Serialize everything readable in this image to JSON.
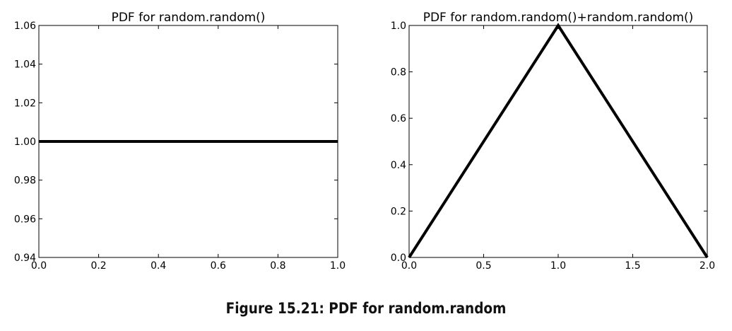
{
  "caption": "Figure 15.21: PDF for random.random",
  "chart_data": [
    {
      "type": "line",
      "title": "PDF for random.random()",
      "xlabel": "",
      "ylabel": "",
      "xlim": [
        0.0,
        1.0
      ],
      "ylim": [
        0.94,
        1.06
      ],
      "xticks": [
        0.0,
        0.2,
        0.4,
        0.6,
        0.8,
        1.0
      ],
      "xtick_labels": [
        "0.0",
        "0.2",
        "0.4",
        "0.6",
        "0.8",
        "1.0"
      ],
      "yticks": [
        0.94,
        0.96,
        0.98,
        1.0,
        1.02,
        1.04,
        1.06
      ],
      "ytick_labels": [
        "0.94",
        "0.96",
        "0.98",
        "1.00",
        "1.02",
        "1.04",
        "1.06"
      ],
      "grid": false,
      "line_color": "#000000",
      "series": [
        {
          "x": [
            0.0,
            1.0
          ],
          "y": [
            1.0,
            1.0
          ]
        }
      ]
    },
    {
      "type": "line",
      "title": "PDF for random.random()+random.random()",
      "xlabel": "",
      "ylabel": "",
      "xlim": [
        0.0,
        2.0
      ],
      "ylim": [
        0.0,
        1.0
      ],
      "xticks": [
        0.0,
        0.5,
        1.0,
        1.5,
        2.0
      ],
      "xtick_labels": [
        "0.0",
        "0.5",
        "1.0",
        "1.5",
        "2.0"
      ],
      "yticks": [
        0.0,
        0.2,
        0.4,
        0.6,
        0.8,
        1.0
      ],
      "ytick_labels": [
        "0.0",
        "0.2",
        "0.4",
        "0.6",
        "0.8",
        "1.0"
      ],
      "grid": false,
      "line_color": "#000000",
      "series": [
        {
          "x": [
            0.0,
            1.0,
            2.0
          ],
          "y": [
            0.0,
            1.0,
            0.0
          ]
        }
      ]
    }
  ]
}
